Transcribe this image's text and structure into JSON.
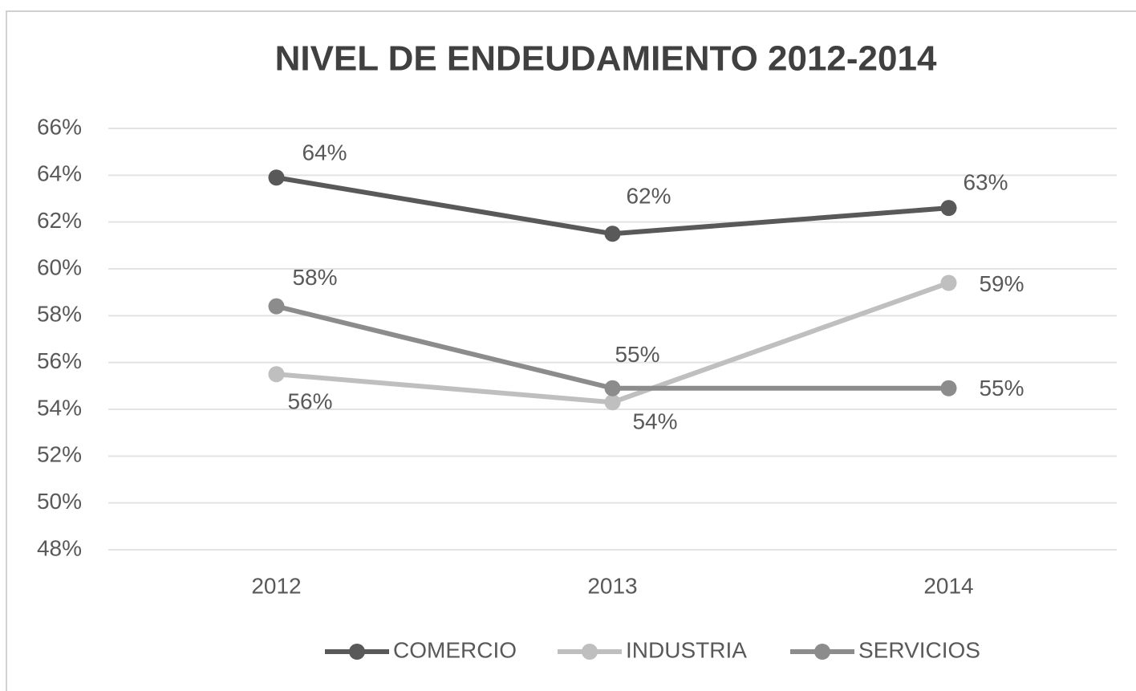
{
  "chart_data": {
    "type": "line",
    "title": "NIVEL DE ENDEUDAMIENTO 2012-2014",
    "categories": [
      "2012",
      "2013",
      "2014"
    ],
    "series": [
      {
        "name": "COMERCIO",
        "color": "#595959",
        "values": [
          63.9,
          61.5,
          62.6
        ],
        "value_labels": [
          "64%",
          "62%",
          "63%"
        ]
      },
      {
        "name": "INDUSTRIA",
        "color": "#bfbfbf",
        "values": [
          55.5,
          54.3,
          59.4
        ],
        "value_labels": [
          "56%",
          "54%",
          "59%"
        ]
      },
      {
        "name": "SERVICIOS",
        "color": "#8c8c8c",
        "values": [
          58.4,
          54.9,
          54.9
        ],
        "value_labels": [
          "58%",
          "55%",
          "55%"
        ]
      }
    ],
    "ylim": [
      48,
      66
    ],
    "yticks": [
      {
        "value": 48,
        "label": "48%"
      },
      {
        "value": 50,
        "label": "50%"
      },
      {
        "value": 52,
        "label": "52%"
      },
      {
        "value": 54,
        "label": "54%"
      },
      {
        "value": 56,
        "label": "56%"
      },
      {
        "value": 58,
        "label": "58%"
      },
      {
        "value": 60,
        "label": "60%"
      },
      {
        "value": 62,
        "label": "62%"
      },
      {
        "value": 64,
        "label": "64%"
      },
      {
        "value": 66,
        "label": "66%"
      }
    ],
    "grid": true,
    "legend": "bottom"
  }
}
